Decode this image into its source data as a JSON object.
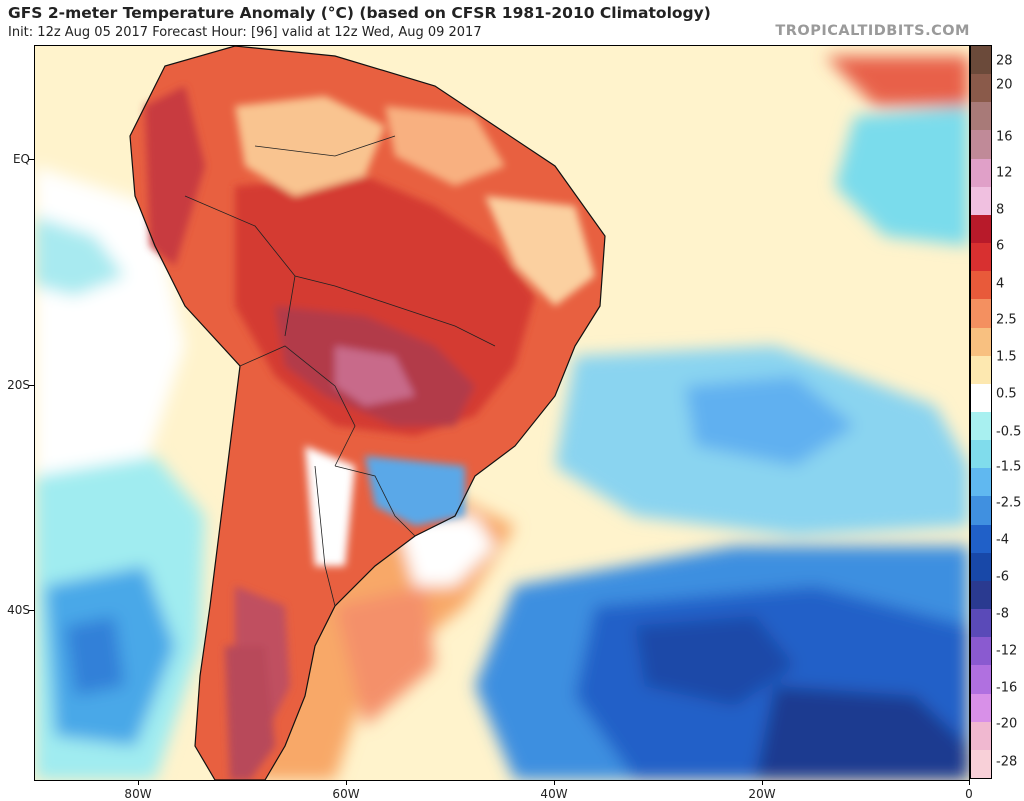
{
  "header": {
    "title": "GFS 2-meter Temperature Anomaly (°C) (based on CFSR 1981-2010 Climatology)",
    "subtitle": "Init: 12z Aug 05 2017   Forecast Hour: [96]   valid at 12z Wed, Aug 09 2017",
    "credit": "TROPICALTIDBITS.COM"
  },
  "map": {
    "region": "South America / South Atlantic",
    "lat_labels": [
      "EQ",
      "20S",
      "40S"
    ],
    "lon_labels": [
      "80W",
      "60W",
      "40W",
      "20W",
      "0"
    ]
  },
  "colorbar": {
    "labels": [
      "28",
      "20",
      "16",
      "12",
      "8",
      "6",
      "4",
      "2.5",
      "1.5",
      "0.5",
      "-0.5",
      "-1.5",
      "-2.5",
      "-4",
      "-6",
      "-8",
      "-12",
      "-16",
      "-20",
      "-28"
    ],
    "colors": [
      "#6b4a3a",
      "#8a5a4a",
      "#a87a78",
      "#c08a98",
      "#e0a0c8",
      "#f0c0e0",
      "#b81a2a",
      "#d83030",
      "#e85a3a",
      "#f49060",
      "#f8c080",
      "#fde8b0",
      "#ffffff",
      "#a8f0f0",
      "#80dcec",
      "#60b8f0",
      "#4090e0",
      "#2060c8",
      "#1848a8",
      "#2a3a90",
      "#5a4ab8",
      "#8a5ad0",
      "#b070e0",
      "#d890e8",
      "#f0b8d0",
      "#f8d0d8"
    ]
  }
}
